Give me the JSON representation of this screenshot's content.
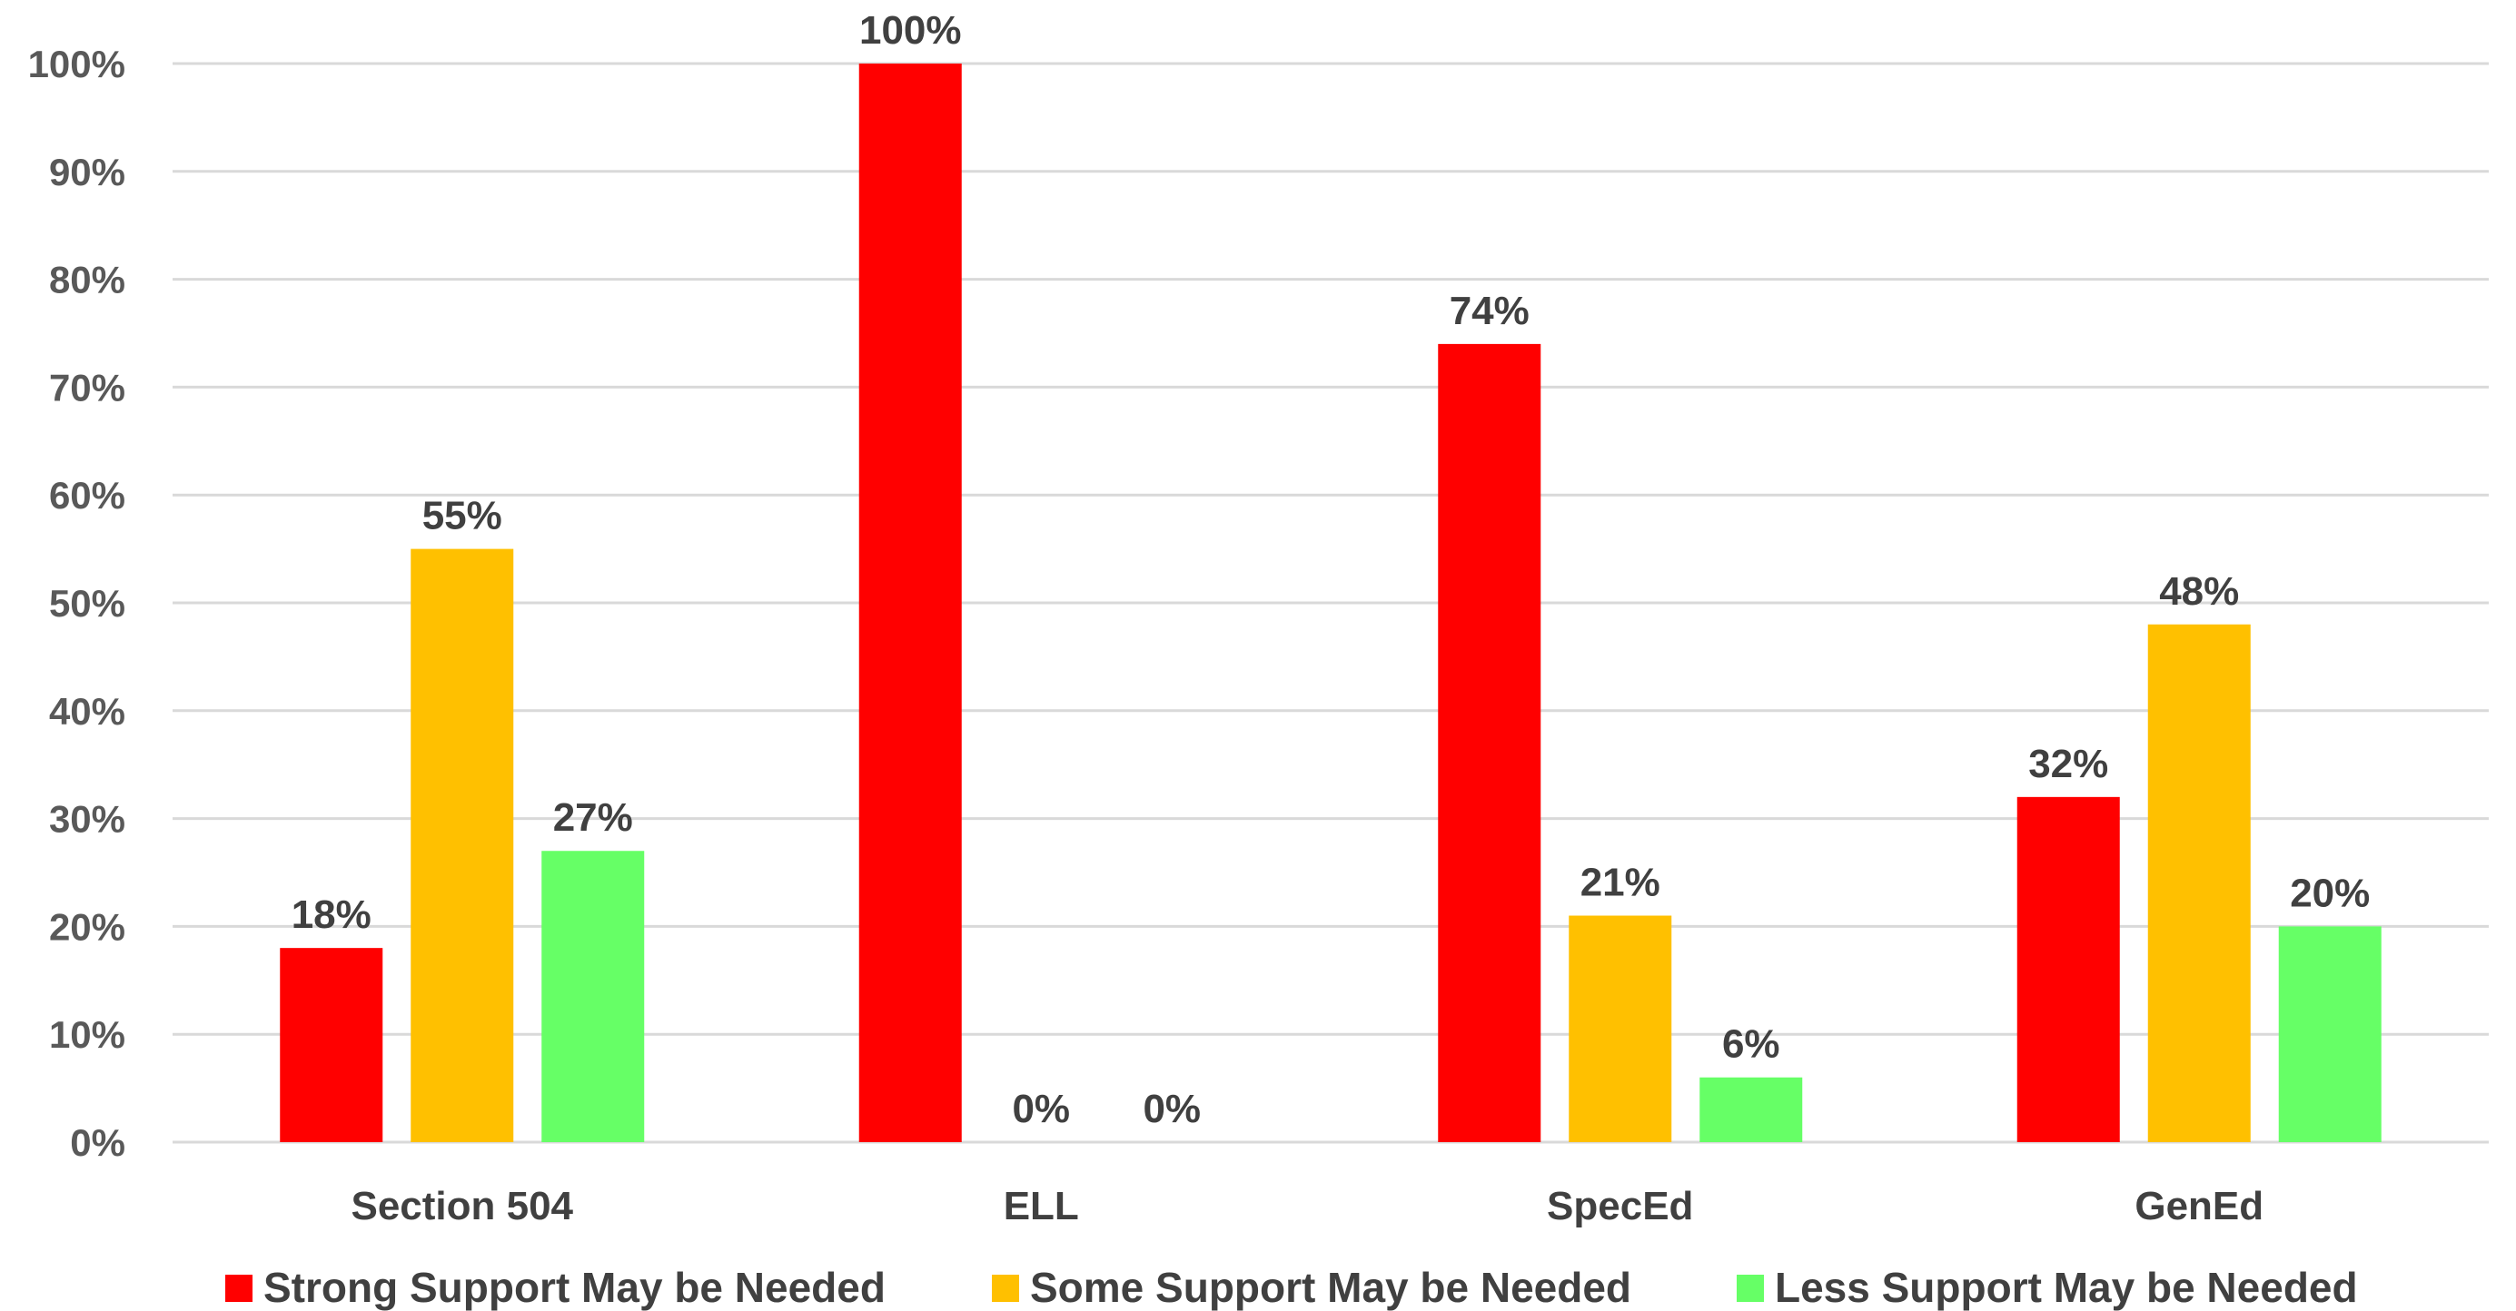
{
  "chart_data": {
    "type": "bar",
    "title": "",
    "xlabel": "",
    "ylabel": "",
    "categories": [
      "Section 504",
      "ELL",
      "SpecEd",
      "GenEd"
    ],
    "series": [
      {
        "name": "Strong Support May be Needed",
        "color": "#ff0000",
        "values": [
          18,
          100,
          74,
          32
        ],
        "labels": [
          "18%",
          "100%",
          "74%",
          "32%"
        ]
      },
      {
        "name": "Some Support May be Needed",
        "color": "#ffc000",
        "values": [
          55,
          0,
          21,
          48
        ],
        "labels": [
          "55%",
          "0%",
          "21%",
          "48%"
        ]
      },
      {
        "name": "Less Support May be Needed",
        "color": "#66ff66",
        "values": [
          27,
          0,
          6,
          20
        ],
        "labels": [
          "27%",
          "0%",
          "6%",
          "20%"
        ]
      }
    ],
    "ylim": [
      0,
      100
    ],
    "yticks": [
      "0%",
      "10%",
      "20%",
      "30%",
      "40%",
      "50%",
      "60%",
      "70%",
      "80%",
      "90%",
      "100%"
    ],
    "grid": true,
    "legend_position": "bottom"
  }
}
